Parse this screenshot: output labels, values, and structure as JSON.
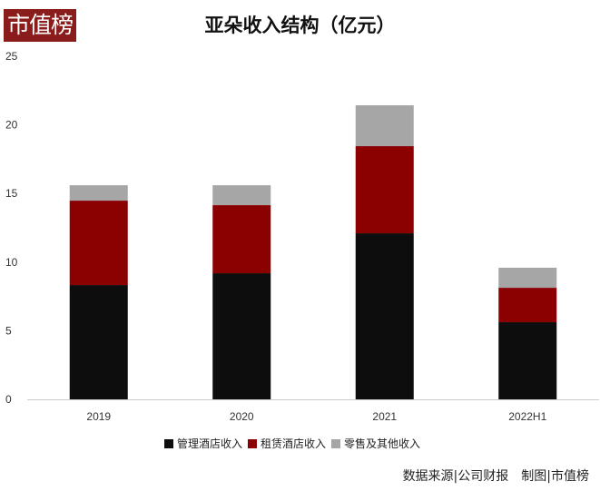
{
  "logo_text": "市值榜",
  "chart_data": {
    "type": "bar",
    "stacked": true,
    "title": "亚朵收入结构（亿元）",
    "categories": [
      "2019",
      "2020",
      "2021",
      "2022H1"
    ],
    "series": [
      {
        "name": "管理酒店收入",
        "color": "#0d0d0d",
        "values": [
          8.33,
          9.19,
          12.1,
          5.62
        ]
      },
      {
        "name": "租赁酒店收入",
        "color": "#8b0000",
        "values": [
          6.15,
          4.96,
          6.35,
          2.51
        ]
      },
      {
        "name": "零售及其他收入",
        "color": "#a6a6a6",
        "values": [
          1.12,
          1.45,
          2.98,
          1.46
        ]
      }
    ],
    "ylim": [
      0,
      25
    ],
    "yticks": [
      0,
      5,
      10,
      15,
      20,
      25
    ],
    "grid": false,
    "legend": "bottom",
    "xlabel": "",
    "ylabel": ""
  },
  "source": "数据来源|公司财报　制图|市值榜"
}
